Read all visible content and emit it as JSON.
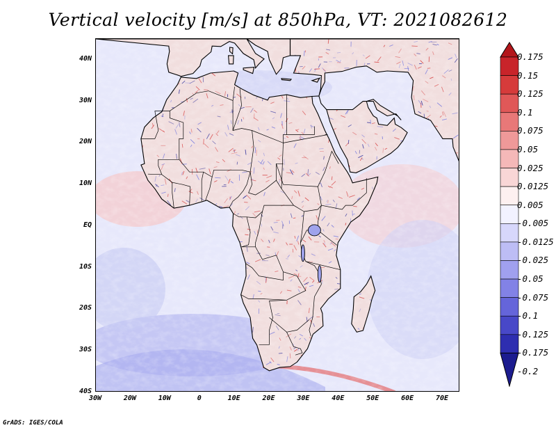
{
  "title": "Vertical velocity [m/s] at 850hPa, VT: 2021082612",
  "credit": "GrADS: IGES/COLA",
  "map": {
    "projection": "lat-lon",
    "lon_range": [
      -30,
      75
    ],
    "lat_range": [
      -40,
      45
    ],
    "region": "Africa, Arabian Peninsula, Mediterranean, Atlantic and Indian Ocean",
    "field": "vertical velocity at 850hPa",
    "units": "m/s"
  },
  "axes": {
    "y_ticks": [
      {
        "label": "40N",
        "lat": 40
      },
      {
        "label": "30N",
        "lat": 30
      },
      {
        "label": "20N",
        "lat": 20
      },
      {
        "label": "10N",
        "lat": 10
      },
      {
        "label": "EQ",
        "lat": 0
      },
      {
        "label": "10S",
        "lat": -10
      },
      {
        "label": "20S",
        "lat": -20
      },
      {
        "label": "30S",
        "lat": -30
      },
      {
        "label": "40S",
        "lat": -40
      }
    ],
    "x_ticks": [
      {
        "label": "30W",
        "lon": -30
      },
      {
        "label": "20W",
        "lon": -20
      },
      {
        "label": "10W",
        "lon": -10
      },
      {
        "label": "0",
        "lon": 0
      },
      {
        "label": "10E",
        "lon": 10
      },
      {
        "label": "20E",
        "lon": 20
      },
      {
        "label": "30E",
        "lon": 30
      },
      {
        "label": "40E",
        "lon": 40
      },
      {
        "label": "50E",
        "lon": 50
      },
      {
        "label": "60E",
        "lon": 60
      },
      {
        "label": "70E",
        "lon": 70
      }
    ]
  },
  "colorbar": {
    "labels": [
      "0.175",
      "0.15",
      "0.125",
      "0.1",
      "0.075",
      "0.05",
      "0.025",
      "0.0125",
      "0.005",
      "-0.005",
      "-0.0125",
      "-0.025",
      "-0.05",
      "-0.075",
      "-0.1",
      "-0.125",
      "-0.175",
      "-0.2"
    ],
    "colors": [
      "#b3161b",
      "#c8242a",
      "#d63b3b",
      "#e05858",
      "#e87878",
      "#ef9999",
      "#f5b8b8",
      "#f9d6d6",
      "#fdf0f0",
      "#f2f2ff",
      "#d7d7fb",
      "#bdbdf5",
      "#a0a0ef",
      "#8282e6",
      "#6565da",
      "#4848c8",
      "#2e2eb0",
      "#1c1c8f"
    ]
  }
}
